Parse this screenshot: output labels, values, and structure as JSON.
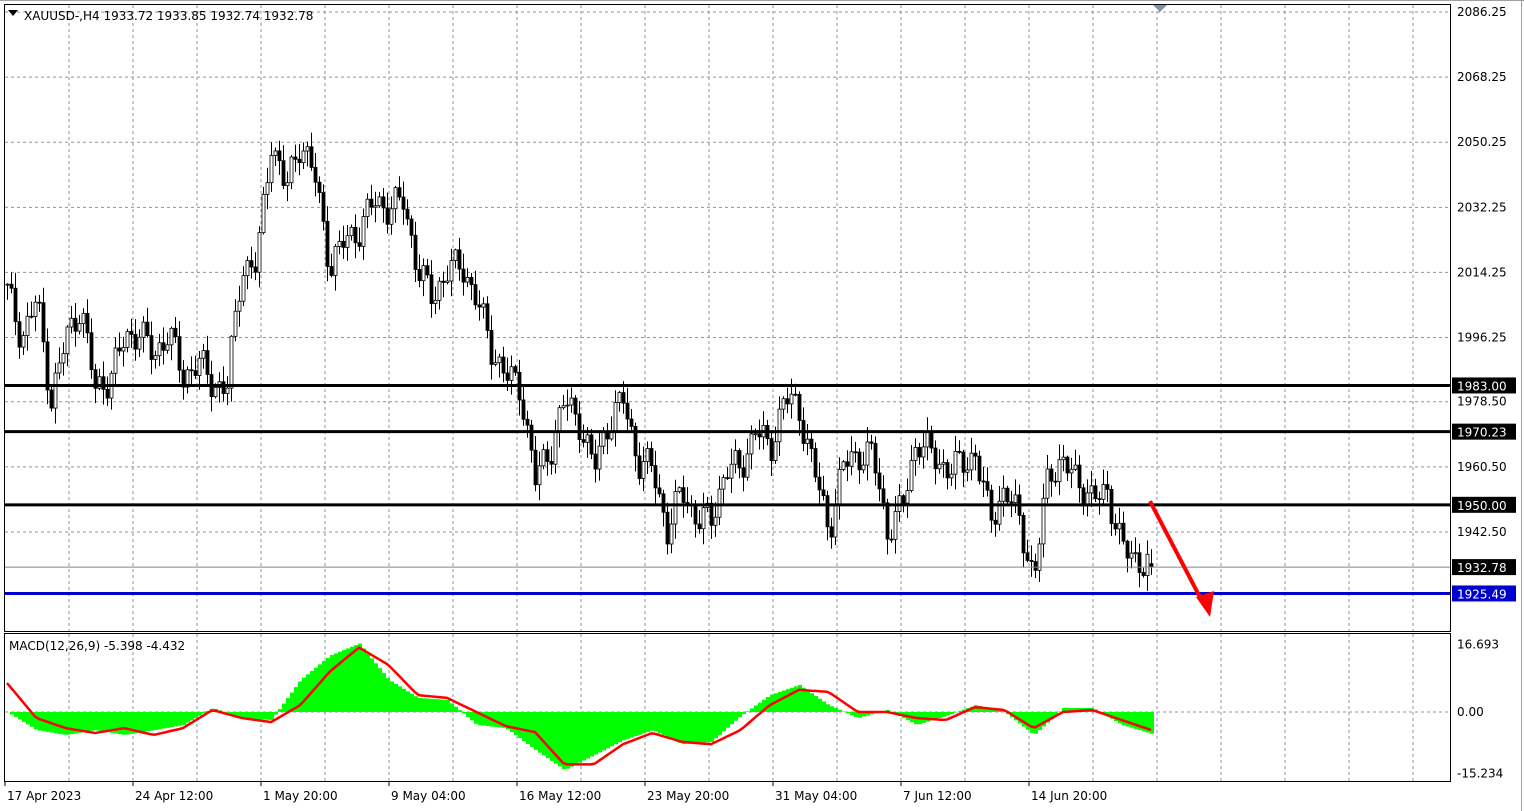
{
  "header": {
    "symbol_info": "XAUUSD-,H4  1933.72 1933.85 1932.74 1932.78"
  },
  "chart_data": [
    {
      "type": "candlestick",
      "symbol": "XAUUSD-",
      "timeframe": "H4",
      "ohlc_last": {
        "open": 1933.72,
        "high": 1933.85,
        "low": 1932.74,
        "close": 1932.78
      },
      "ylim": [
        1919.0,
        2088.0
      ],
      "y_ticks": [
        "2086.25",
        "2068.25",
        "2050.25",
        "2032.25",
        "2014.25",
        "1996.25",
        "1978.50",
        "1960.50",
        "1942.50"
      ],
      "x_ticks": [
        "17 Apr 2023",
        "24 Apr 12:00",
        "1 May 20:00",
        "9 May 04:00",
        "16 May 12:00",
        "23 May 20:00",
        "31 May 04:00",
        "7 Jun 12:00",
        "14 Jun 20:00"
      ],
      "grid": true,
      "close_path": [
        2009,
        1996,
        2007,
        1979,
        1996,
        2005,
        1982,
        1985,
        1996,
        1998,
        1991,
        1998,
        1985,
        1990,
        1983,
        1983,
        2016,
        2016,
        2051,
        2037,
        2051,
        2040,
        2016,
        2023,
        2026,
        2034,
        2032,
        2034,
        2015,
        2007,
        2015,
        2016,
        2007,
        1993,
        1986,
        1982,
        1957,
        1965,
        1979,
        1973,
        1960,
        1973,
        1979,
        1962,
        1960,
        1943,
        1954,
        1946,
        1946,
        1960,
        1960,
        1971,
        1965,
        1980,
        1976,
        1960,
        1943,
        1961,
        1964,
        1964,
        1943,
        1949,
        1968,
        1964,
        1960,
        1961,
        1964,
        1946,
        1954,
        1946,
        1929,
        1960,
        1961,
        1957,
        1951,
        1954,
        1938,
        1935,
        1932.78
      ],
      "horizontal_levels": [
        {
          "price": 1983.0,
          "label": "1983.00",
          "color": "#000000"
        },
        {
          "price": 1970.23,
          "label": "1970.23",
          "color": "#000000"
        },
        {
          "price": 1950.0,
          "label": "1950.00",
          "color": "#000000"
        },
        {
          "price": 1925.49,
          "label": "1925.49",
          "color": "#0000cc"
        }
      ],
      "bid_line": {
        "price": 1932.78,
        "label": "1932.78",
        "color": "#778899"
      },
      "annotation_arrow": {
        "color": "#ff0000",
        "direction": "down",
        "from_price": 1951,
        "to_price": 1919
      }
    },
    {
      "type": "macd",
      "title": "MACD(12,26,9) -5.398 -4.432",
      "params": [
        12,
        26,
        9
      ],
      "value_main": -5.398,
      "value_signal": -4.432,
      "ylim": [
        -16.7,
        18.3
      ],
      "y_ticks": [
        "16.693",
        "0.00",
        "-15.234"
      ],
      "histogram_color": "#00ff00",
      "signal_color": "#ff0000",
      "histogram_path": [
        0,
        -4.5,
        -5.7,
        -4.5,
        -5.7,
        -4.5,
        -3.2,
        1,
        -1.5,
        -2,
        8,
        14,
        17,
        8,
        3.5,
        3,
        -3.2,
        -4,
        -9.4,
        -14.4,
        -10.7,
        -7,
        -4.5,
        -8,
        -7.4,
        -1,
        4.2,
        6.7,
        1.7,
        -1.5,
        0.5,
        -3.2,
        -1,
        1.7,
        0,
        -5.7,
        1,
        1,
        -3.2,
        -5.398
      ],
      "signal_path": [
        7.2,
        -1.5,
        -4,
        -5.2,
        -4,
        -5.7,
        -4,
        0.5,
        -1.5,
        -2.5,
        1.7,
        10,
        16,
        11.7,
        4.2,
        3.5,
        0,
        -3.5,
        -5,
        -13,
        -13,
        -8,
        -5.2,
        -7.4,
        -8,
        -4.5,
        1.7,
        5.5,
        5,
        0,
        0,
        -1.5,
        -2,
        1.2,
        0.5,
        -4,
        0,
        0.5,
        -2,
        -4.432
      ]
    }
  ]
}
